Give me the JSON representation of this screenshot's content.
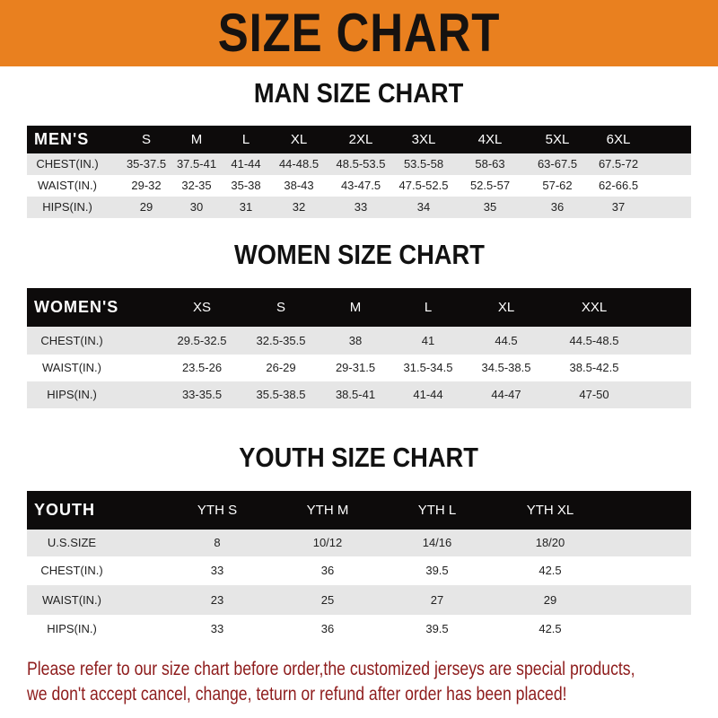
{
  "banner_title": "SIZE CHART",
  "men": {
    "title": "MAN SIZE CHART",
    "header": [
      "MEN'S",
      "S",
      "M",
      "L",
      "XL",
      "2XL",
      "3XL",
      "4XL",
      "5XL",
      "6XL"
    ],
    "rows": [
      [
        "CHEST(IN.)",
        "35-37.5",
        "37.5-41",
        "41-44",
        "44-48.5",
        "48.5-53.5",
        "53.5-58",
        "58-63",
        "63-67.5",
        "67.5-72"
      ],
      [
        "WAIST(IN.)",
        "29-32",
        "32-35",
        "35-38",
        "38-43",
        "43-47.5",
        "47.5-52.5",
        "52.5-57",
        "57-62",
        "62-66.5"
      ],
      [
        "HIPS(IN.)",
        "29",
        "30",
        "31",
        "32",
        "33",
        "34",
        "35",
        "36",
        "37"
      ]
    ]
  },
  "women": {
    "title": "WOMEN SIZE CHART",
    "header": [
      "WOMEN'S",
      "XS",
      "S",
      "M",
      "L",
      "XL",
      "XXL"
    ],
    "rows": [
      [
        "CHEST(IN.)",
        "29.5-32.5",
        "32.5-35.5",
        "38",
        "41",
        "44.5",
        "44.5-48.5"
      ],
      [
        "WAIST(IN.)",
        "23.5-26",
        "26-29",
        "29-31.5",
        "31.5-34.5",
        "34.5-38.5",
        "38.5-42.5"
      ],
      [
        "HIPS(IN.)",
        "33-35.5",
        "35.5-38.5",
        "38.5-41",
        "41-44",
        "44-47",
        "47-50"
      ]
    ]
  },
  "youth": {
    "title": "YOUTH SIZE CHART",
    "header": [
      "YOUTH",
      "YTH S",
      "YTH M",
      "YTH L",
      "YTH XL"
    ],
    "rows": [
      [
        "U.S.SIZE",
        "8",
        "10/12",
        "14/16",
        "18/20"
      ],
      [
        "CHEST(IN.)",
        "33",
        "36",
        "39.5",
        "42.5"
      ],
      [
        "WAIST(IN.)",
        "23",
        "25",
        "27",
        "29"
      ],
      [
        "HIPS(IN.)",
        "33",
        "36",
        "39.5",
        "42.5"
      ]
    ]
  },
  "notice": [
    "Please refer to our size chart before order,the customized jerseys are special products,",
    "we don't accept cancel, change, teturn or refund after order has been placed!"
  ],
  "colors": {
    "banner": "#e9801f",
    "header_row": "#0d0b0b",
    "notice_text": "#8e1c1c"
  }
}
